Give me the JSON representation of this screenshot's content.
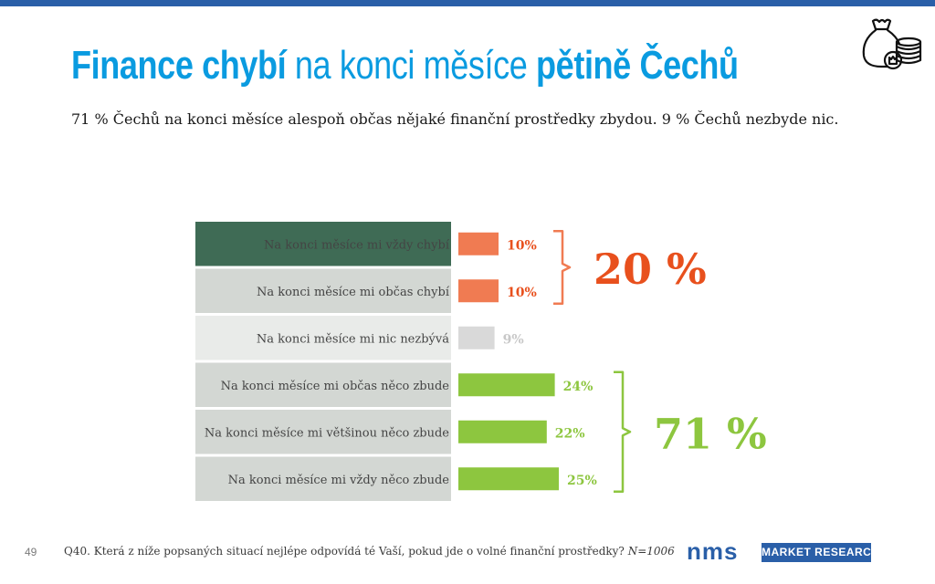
{
  "header": {
    "title_part1": "Finance chybí",
    "title_part2": " na konci měsíce ",
    "title_part3": "pětině Čechů",
    "subtitle": "71 % Čechů na konci měsíce alespoň občas nějaké finanční prostředky zbydou. 9 % Čechů nezbyde nic."
  },
  "icon": {
    "name": "money-bag-coins-icon"
  },
  "colors": {
    "title": "#0a9be0",
    "orange": "#f07b52",
    "orange_text": "#e8501d",
    "grey": "#d9d9d9",
    "grey_text": "#c8c8c8",
    "green": "#8dc63f",
    "label_dark_bg": "#3f6b55",
    "label_mid_bg": "#d3d7d3",
    "label_light_bg": "#e9ebe9",
    "brand_blue": "#2a5fa8"
  },
  "chart_data": {
    "type": "bar",
    "orientation": "horizontal",
    "categories": [
      "Na konci měsíce mi vždy chybí",
      "Na konci měsíce mi občas chybí",
      "Na konci měsíce mi nic nezbývá",
      "Na konci měsíce mi občas něco zbude",
      "Na konci měsíce mi většinou něco zbude",
      "Na konci měsíce mi vždy něco zbude"
    ],
    "values": [
      10,
      10,
      9,
      24,
      22,
      25
    ],
    "value_labels": [
      "10%",
      "10%",
      "9%",
      "24%",
      "22%",
      "25%"
    ],
    "groups": [
      {
        "label": "20 %",
        "from": 0,
        "to": 1,
        "color": "orange"
      },
      {
        "label": "71 %",
        "from": 3,
        "to": 5,
        "color": "green"
      }
    ],
    "bar_colors": [
      "orange",
      "orange",
      "grey",
      "green",
      "green",
      "green"
    ],
    "label_bgs": [
      "dark",
      "mid",
      "light",
      "mid",
      "mid",
      "mid"
    ],
    "xmax": 30
  },
  "footer": {
    "page_number": "49",
    "question": "Q40. Která z níže popsaných situací nejlépe odpovídá té Vaší, pokud jde o volné finanční prostředky?",
    "sample": "N=1006"
  },
  "logo": {
    "name": "nms",
    "tagline": "MARKET RESEARCH"
  }
}
